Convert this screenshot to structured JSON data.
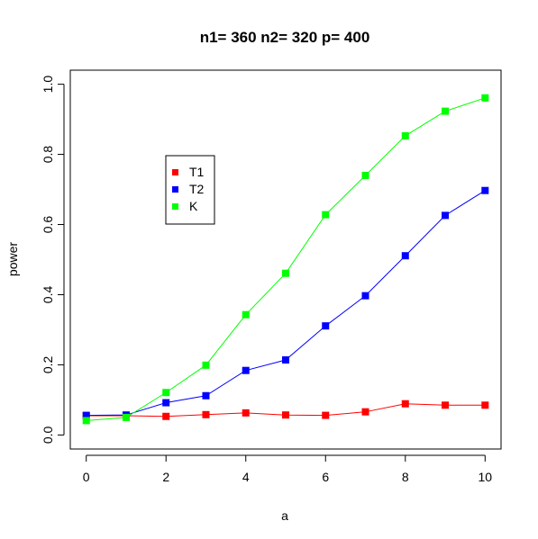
{
  "chart_data": {
    "type": "line",
    "title": "n1= 360 n2= 320 p= 400",
    "xlabel": "a",
    "ylabel": "power",
    "xlim": [
      -0.4,
      10.4
    ],
    "ylim": [
      -0.04,
      1.04
    ],
    "x_ticks": [
      0,
      2,
      4,
      6,
      8,
      10
    ],
    "x_tick_labels": [
      "0",
      "2",
      "4",
      "6",
      "8",
      "10"
    ],
    "y_ticks": [
      0.0,
      0.2,
      0.4,
      0.6,
      0.8,
      1.0
    ],
    "y_tick_labels": [
      "0.0",
      "0.2",
      "0.4",
      "0.6",
      "0.8",
      "1.0"
    ],
    "x": [
      0,
      1,
      2,
      3,
      4,
      5,
      6,
      7,
      8,
      9,
      10
    ],
    "grid": false,
    "legend_position": "upper-left",
    "series": [
      {
        "name": "T1",
        "color": "#ff0000",
        "values": [
          0.055,
          0.055,
          0.053,
          0.058,
          0.063,
          0.057,
          0.056,
          0.066,
          0.089,
          0.085,
          0.085
        ]
      },
      {
        "name": "T2",
        "color": "#0000ff",
        "values": [
          0.056,
          0.057,
          0.092,
          0.112,
          0.184,
          0.214,
          0.311,
          0.397,
          0.511,
          0.626,
          0.697
        ]
      },
      {
        "name": "K",
        "color": "#00ff00",
        "values": [
          0.041,
          0.05,
          0.121,
          0.199,
          0.343,
          0.461,
          0.628,
          0.74,
          0.853,
          0.923,
          0.961
        ]
      }
    ]
  }
}
